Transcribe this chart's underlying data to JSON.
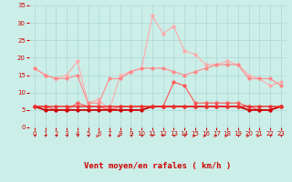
{
  "xlabel": "Vent moyen/en rafales ( km/h )",
  "bg_color": "#cceee8",
  "grid_color": "#aad8d4",
  "x_values": [
    0,
    1,
    2,
    3,
    4,
    5,
    6,
    7,
    8,
    9,
    10,
    11,
    12,
    13,
    14,
    15,
    16,
    17,
    18,
    19,
    20,
    21,
    22,
    23
  ],
  "series": {
    "rafales_max": [
      17,
      15,
      14,
      15,
      19,
      7,
      8,
      5,
      15,
      16,
      17,
      32,
      27,
      29,
      22,
      21,
      18,
      18,
      19,
      18,
      15,
      14,
      12,
      13
    ],
    "rafales_moy": [
      17,
      15,
      14,
      14,
      15,
      7,
      7,
      14,
      14,
      16,
      17,
      17,
      17,
      16,
      15,
      16,
      17,
      18,
      18,
      18,
      14,
      14,
      14,
      12
    ],
    "vent_moy2": [
      6,
      6,
      5,
      5,
      7,
      6,
      6,
      5,
      6,
      6,
      6,
      6,
      6,
      13,
      12,
      7,
      7,
      7,
      7,
      7,
      6,
      5,
      5,
      6
    ],
    "vent_moy": [
      6,
      5,
      5,
      5,
      5,
      5,
      5,
      5,
      5,
      5,
      5,
      6,
      6,
      6,
      6,
      6,
      6,
      6,
      6,
      6,
      5,
      5,
      5,
      6
    ],
    "flat_line": [
      6,
      6,
      6,
      6,
      6,
      6,
      6,
      6,
      6,
      6,
      6,
      6,
      6,
      6,
      6,
      6,
      6,
      6,
      6,
      6,
      6,
      6,
      6,
      6
    ]
  },
  "colors": {
    "rafales_max": "#ffaaaa",
    "rafales_moy": "#ff8888",
    "vent_moy2": "#ff5555",
    "vent_moy": "#cc0000",
    "flat_line": "#ee3333"
  },
  "ylim": [
    0,
    35
  ],
  "yticks": [
    0,
    5,
    10,
    15,
    20,
    25,
    30,
    35
  ],
  "xticks": [
    0,
    1,
    2,
    3,
    4,
    5,
    6,
    7,
    8,
    9,
    10,
    11,
    12,
    13,
    14,
    15,
    16,
    17,
    18,
    19,
    20,
    21,
    22,
    23
  ],
  "tick_color": "#cc0000",
  "tick_fontsize": 5.0,
  "xlabel_fontsize": 6.5,
  "arrow_angles": [
    45,
    45,
    45,
    45,
    45,
    45,
    90,
    45,
    90,
    45,
    45,
    0,
    0,
    45,
    45,
    90,
    90,
    90,
    90,
    45,
    90,
    90,
    45,
    45
  ]
}
